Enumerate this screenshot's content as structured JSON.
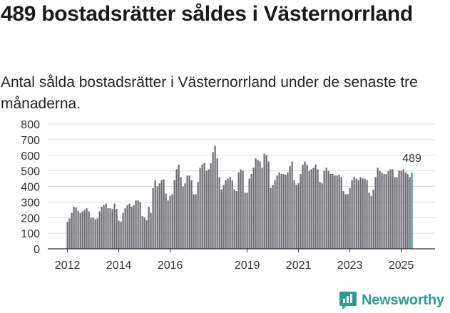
{
  "title": "489 bostadsrätter såldes i Västernorrland",
  "subtitle": "Antal sålda bostadsrätter i Västernorrland under de senaste tre månaderna.",
  "brand": {
    "name": "Newsworthy",
    "icon": "newsworthy-chart-icon",
    "color": "#2e9a93"
  },
  "chart_data": {
    "type": "bar",
    "ylim": [
      0,
      800
    ],
    "yticks": [
      0,
      100,
      200,
      300,
      400,
      500,
      600,
      700,
      800
    ],
    "xticks": [
      "2012",
      "2014",
      "2016",
      "2019",
      "2021",
      "2023",
      "2025"
    ],
    "xtick_index": [
      0,
      24,
      48,
      84,
      108,
      132,
      156
    ],
    "bar_color": "#6b6a6f",
    "highlight_color": "#2e9a93",
    "highlight_label": "489",
    "grid": true,
    "values": [
      175,
      195,
      230,
      270,
      265,
      245,
      230,
      240,
      250,
      260,
      240,
      200,
      200,
      190,
      195,
      240,
      270,
      280,
      290,
      260,
      260,
      255,
      290,
      255,
      180,
      175,
      230,
      260,
      280,
      290,
      270,
      280,
      310,
      310,
      300,
      210,
      200,
      185,
      270,
      230,
      390,
      440,
      400,
      420,
      440,
      445,
      355,
      310,
      340,
      350,
      440,
      510,
      540,
      460,
      400,
      420,
      470,
      470,
      440,
      350,
      350,
      430,
      520,
      540,
      550,
      500,
      510,
      550,
      620,
      660,
      580,
      460,
      380,
      410,
      440,
      450,
      460,
      440,
      380,
      370,
      490,
      510,
      500,
      360,
      360,
      450,
      480,
      520,
      580,
      570,
      560,
      520,
      610,
      600,
      560,
      390,
      410,
      440,
      470,
      490,
      480,
      480,
      475,
      490,
      530,
      560,
      440,
      410,
      420,
      480,
      540,
      560,
      540,
      500,
      510,
      520,
      540,
      510,
      430,
      420,
      500,
      520,
      500,
      480,
      480,
      470,
      470,
      475,
      460,
      370,
      350,
      350,
      390,
      440,
      460,
      450,
      440,
      460,
      450,
      450,
      440,
      360,
      340,
      380,
      460,
      520,
      500,
      490,
      480,
      480,
      500,
      510,
      510,
      460,
      460,
      500,
      500,
      510,
      490,
      480,
      460,
      489
    ]
  }
}
